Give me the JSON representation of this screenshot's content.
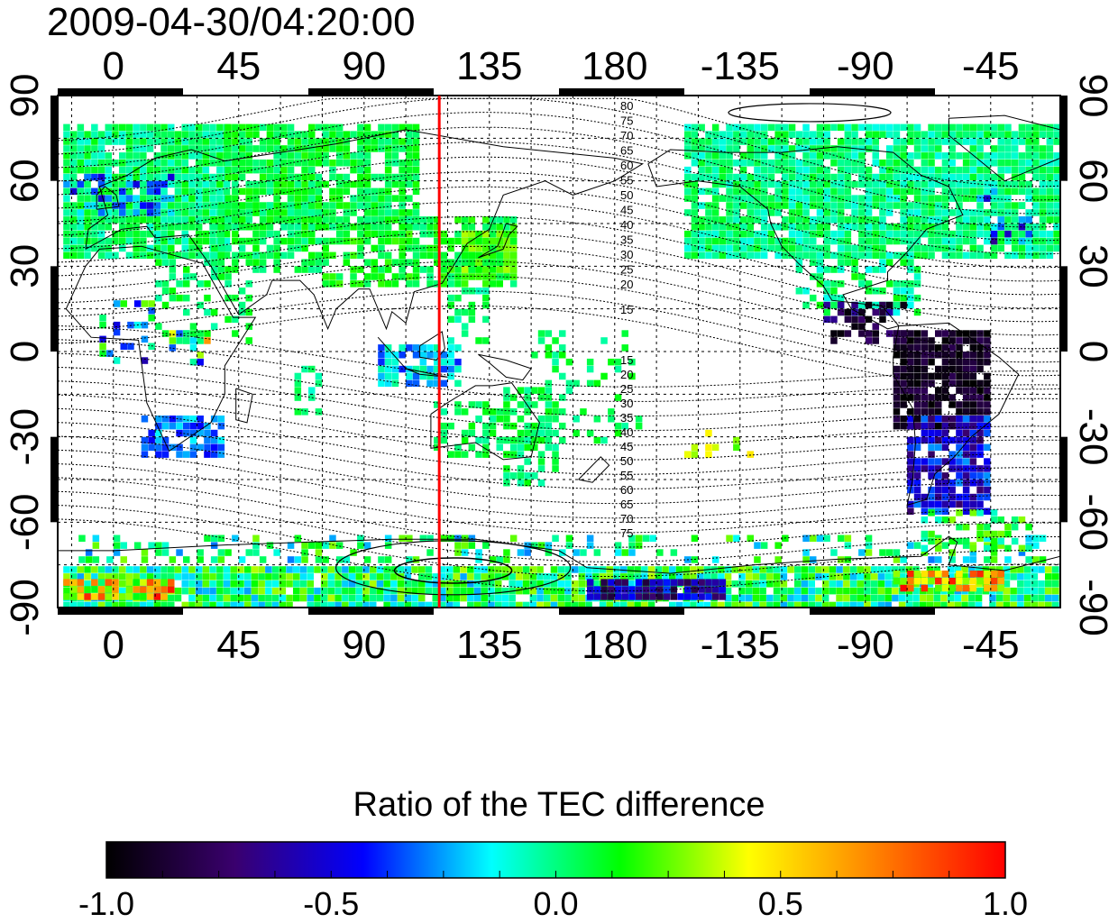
{
  "title": "2009-04-30/04:20:00",
  "map": {
    "x_ticks": [
      "0",
      "45",
      "90",
      "135",
      "180",
      "-135",
      "-90",
      "-45"
    ],
    "y_ticks": [
      "90",
      "60",
      "30",
      "0",
      "-30",
      "-60",
      "-90"
    ],
    "x_tick_lon": [
      0,
      45,
      90,
      135,
      180,
      225,
      270,
      315
    ],
    "y_tick_lat": [
      90,
      60,
      30,
      0,
      -30,
      -60,
      -90
    ],
    "lon_range": [
      -20,
      340
    ],
    "lat_range": [
      -90,
      90
    ],
    "marker_line_lon": 117,
    "marker_line_color": "#ff0000",
    "contour_labels_north": [
      "80",
      "75",
      "70",
      "65",
      "60",
      "55",
      "50",
      "45",
      "40",
      "35",
      "30",
      "25",
      "20",
      "15"
    ],
    "contour_labels_south": [
      "15",
      "20",
      "25",
      "30",
      "35",
      "40",
      "45",
      "50",
      "55",
      "60",
      "65",
      "70",
      "75"
    ],
    "grid": true
  },
  "colorbar": {
    "title": "Ratio of the TEC difference",
    "ticks": [
      "-1.0",
      "-0.5",
      "0.0",
      "0.5",
      "1.0"
    ],
    "tick_values": [
      -1.0,
      -0.5,
      0.0,
      0.5,
      1.0
    ],
    "range": [
      -1.0,
      1.0
    ],
    "colors": [
      "#000000",
      "#3a006e",
      "#0000ff",
      "#00ffff",
      "#00ff00",
      "#ffff00",
      "#ff8000",
      "#ff0000"
    ]
  }
}
